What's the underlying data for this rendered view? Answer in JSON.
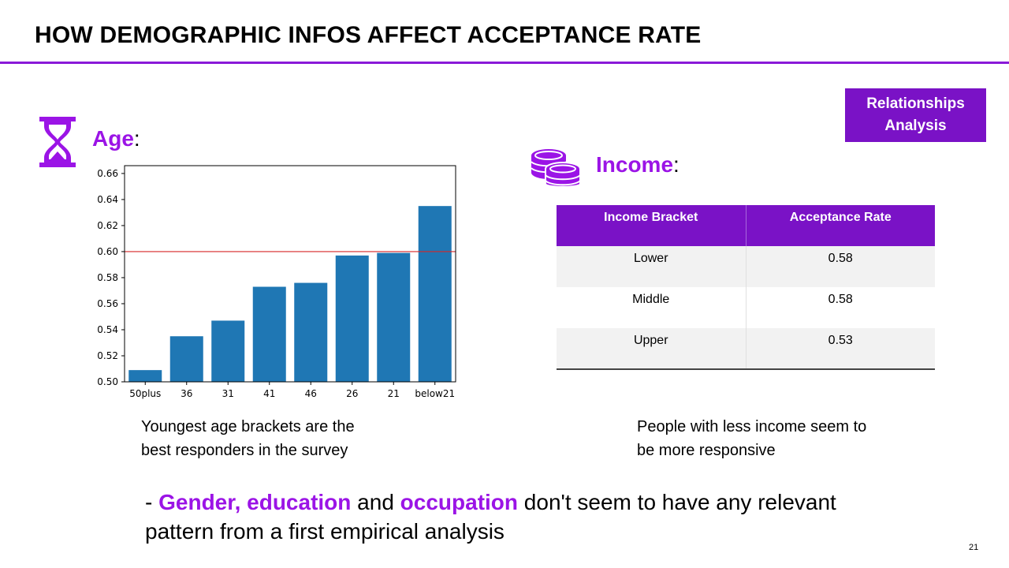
{
  "slide": {
    "title": "HOW DEMOGRAPHIC INFOS AFFECT ACCEPTANCE RATE",
    "badge_line1": "Relationships",
    "badge_line2": "Analysis",
    "page_number": "21",
    "accent_color": "#7a12c6"
  },
  "age": {
    "label": "Age",
    "colon": ":",
    "icon": "hourglass-icon",
    "caption_line1": "Youngest age brackets are the",
    "caption_line2": "best responders in the survey"
  },
  "income": {
    "label": "Income",
    "colon": ":",
    "icon": "coins-icon",
    "table": {
      "headers": [
        "Income Bracket",
        "Acceptance Rate"
      ],
      "rows": [
        [
          "Lower",
          "0.58"
        ],
        [
          "Middle",
          "0.58"
        ],
        [
          "Upper",
          "0.53"
        ]
      ]
    },
    "caption_line1": "People with less income seem to",
    "caption_line2": "be more responsive"
  },
  "conclusion": {
    "dash": "- ",
    "kw1": "Gender, education",
    "mid": " and ",
    "kw2": "occupation",
    "rest": " don't seem to have any relevant pattern from a first empirical analysis"
  },
  "chart_data": {
    "type": "bar",
    "categories": [
      "50plus",
      "36",
      "31",
      "41",
      "46",
      "26",
      "21",
      "below21"
    ],
    "values": [
      0.509,
      0.535,
      0.547,
      0.573,
      0.576,
      0.597,
      0.599,
      0.635
    ],
    "ylim": [
      0.5,
      0.666
    ],
    "yticks": [
      "0.50",
      "0.52",
      "0.54",
      "0.56",
      "0.58",
      "0.60",
      "0.62",
      "0.64",
      "0.66"
    ],
    "reference_line": 0.6,
    "bar_color": "#1f77b4",
    "reference_color": "#d62728",
    "grid": false
  }
}
